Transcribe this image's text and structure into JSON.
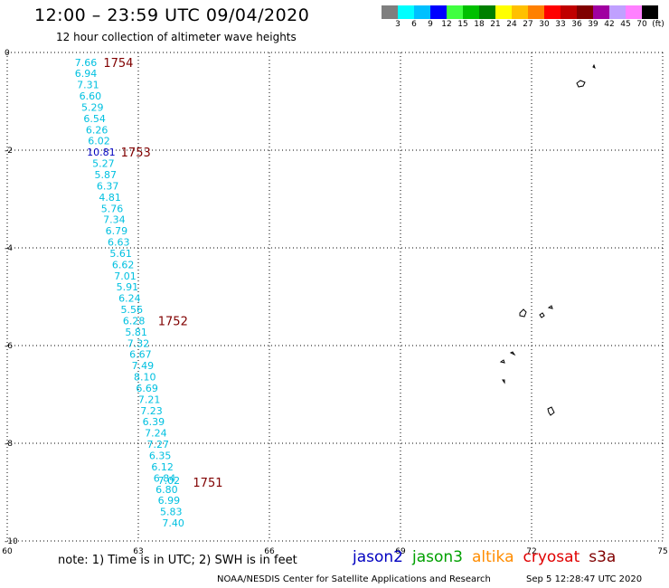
{
  "title": "12:00 – 23:59 UTC 09/04/2020",
  "subtitle": "12 hour collection of altimeter wave heights",
  "colorbar": {
    "colors": [
      "#7f7f7f",
      "#00ffff",
      "#00c0ff",
      "#0000ff",
      "#40ff40",
      "#00c000",
      "#008000",
      "#ffff00",
      "#ffc000",
      "#ff8000",
      "#ff0000",
      "#c00000",
      "#800000",
      "#a000a0",
      "#c0a0ff",
      "#ff80ff",
      "#000000"
    ],
    "labels": [
      "3",
      "6",
      "9",
      "12",
      "15",
      "18",
      "21",
      "24",
      "27",
      "30",
      "33",
      "36",
      "39",
      "42",
      "45",
      "70",
      "(ft)"
    ]
  },
  "axes": {
    "x_ticks": [
      "60",
      "63",
      "66",
      "69",
      "72",
      "75"
    ],
    "y_ticks": [
      "0",
      "-2",
      "-4",
      "-6",
      "-8",
      "-10"
    ],
    "xlim": [
      60,
      75
    ],
    "ylim": [
      -10,
      0
    ]
  },
  "track": {
    "color": "#00c0e0",
    "time_color": "#800000",
    "points": [
      {
        "lon": 61.8,
        "lat": -0.2,
        "v": "7.66"
      },
      {
        "lon": 61.8,
        "lat": -0.43,
        "v": "6.94"
      },
      {
        "lon": 61.85,
        "lat": -0.66,
        "v": "7.31"
      },
      {
        "lon": 61.9,
        "lat": -0.89,
        "v": "6.60"
      },
      {
        "lon": 61.95,
        "lat": -1.12,
        "v": "5.29"
      },
      {
        "lon": 62.0,
        "lat": -1.35,
        "v": "6.54"
      },
      {
        "lon": 62.05,
        "lat": -1.58,
        "v": "6.26"
      },
      {
        "lon": 62.1,
        "lat": -1.81,
        "v": "6.02"
      },
      {
        "lon": 62.15,
        "lat": -2.04,
        "v": "10.81",
        "color": "#0000c0"
      },
      {
        "lon": 62.2,
        "lat": -2.27,
        "v": "5.27"
      },
      {
        "lon": 62.25,
        "lat": -2.5,
        "v": "5.87"
      },
      {
        "lon": 62.3,
        "lat": -2.73,
        "v": "6.37"
      },
      {
        "lon": 62.35,
        "lat": -2.96,
        "v": "4.81"
      },
      {
        "lon": 62.4,
        "lat": -3.19,
        "v": "5.76"
      },
      {
        "lon": 62.45,
        "lat": -3.42,
        "v": "7.34"
      },
      {
        "lon": 62.5,
        "lat": -3.65,
        "v": "6.79"
      },
      {
        "lon": 62.55,
        "lat": -3.88,
        "v": "6.63"
      },
      {
        "lon": 62.6,
        "lat": -4.11,
        "v": "5.61"
      },
      {
        "lon": 62.65,
        "lat": -4.34,
        "v": "6.62"
      },
      {
        "lon": 62.7,
        "lat": -4.57,
        "v": "7.01"
      },
      {
        "lon": 62.75,
        "lat": -4.8,
        "v": "5.91"
      },
      {
        "lon": 62.8,
        "lat": -5.03,
        "v": "6.24"
      },
      {
        "lon": 62.85,
        "lat": -5.26,
        "v": "5.56"
      },
      {
        "lon": 62.9,
        "lat": -5.49,
        "v": "6.28"
      },
      {
        "lon": 62.95,
        "lat": -5.72,
        "v": "5.81"
      },
      {
        "lon": 63.0,
        "lat": -5.95,
        "v": "7.32"
      },
      {
        "lon": 63.05,
        "lat": -6.18,
        "v": "6.67"
      },
      {
        "lon": 63.1,
        "lat": -6.41,
        "v": "7.49"
      },
      {
        "lon": 63.15,
        "lat": -6.64,
        "v": "8.10"
      },
      {
        "lon": 63.2,
        "lat": -6.87,
        "v": "6.69"
      },
      {
        "lon": 63.25,
        "lat": -7.1,
        "v": "7.21"
      },
      {
        "lon": 63.3,
        "lat": -7.33,
        "v": "7.23"
      },
      {
        "lon": 63.35,
        "lat": -7.56,
        "v": "6.39"
      },
      {
        "lon": 63.4,
        "lat": -7.79,
        "v": "7.24"
      },
      {
        "lon": 63.45,
        "lat": -8.02,
        "v": "7.27"
      },
      {
        "lon": 63.5,
        "lat": -8.25,
        "v": "6.35"
      },
      {
        "lon": 63.55,
        "lat": -8.48,
        "v": "6.12"
      },
      {
        "lon": 63.6,
        "lat": -8.71,
        "v": "6.84"
      },
      {
        "lon": 63.65,
        "lat": -8.94,
        "v": "6.80"
      },
      {
        "lon": 63.7,
        "lat": -9.17,
        "v": "6.99"
      },
      {
        "lon": 63.75,
        "lat": -9.4,
        "v": "5.83"
      },
      {
        "lon": 63.8,
        "lat": -9.63,
        "v": "7.40"
      }
    ],
    "extra_points": [
      {
        "lon": 63.7,
        "lat": -8.76,
        "v": "7.02"
      }
    ],
    "time_labels": [
      {
        "lon": 62.2,
        "lat": -0.2,
        "t": "1754"
      },
      {
        "lon": 62.6,
        "lat": -2.04,
        "t": "1753"
      },
      {
        "lon": 63.45,
        "lat": -5.49,
        "t": "1752"
      },
      {
        "lon": 64.25,
        "lat": -8.8,
        "t": "1751"
      }
    ]
  },
  "note": "note:  1) Time is in UTC;  2) SWH is in feet",
  "legend": [
    {
      "name": "jason2",
      "color": "#0000c0"
    },
    {
      "name": "jason3",
      "color": "#00a000"
    },
    {
      "name": "altika",
      "color": "#ff8c00"
    },
    {
      "name": "cryosat",
      "color": "#e00000"
    },
    {
      "name": "s3a",
      "color": "#800000"
    }
  ],
  "credit": "NOAA/NESDIS Center for Satellite Applications and Research",
  "timestamp": "Sep  5 12:28:47 UTC 2020"
}
